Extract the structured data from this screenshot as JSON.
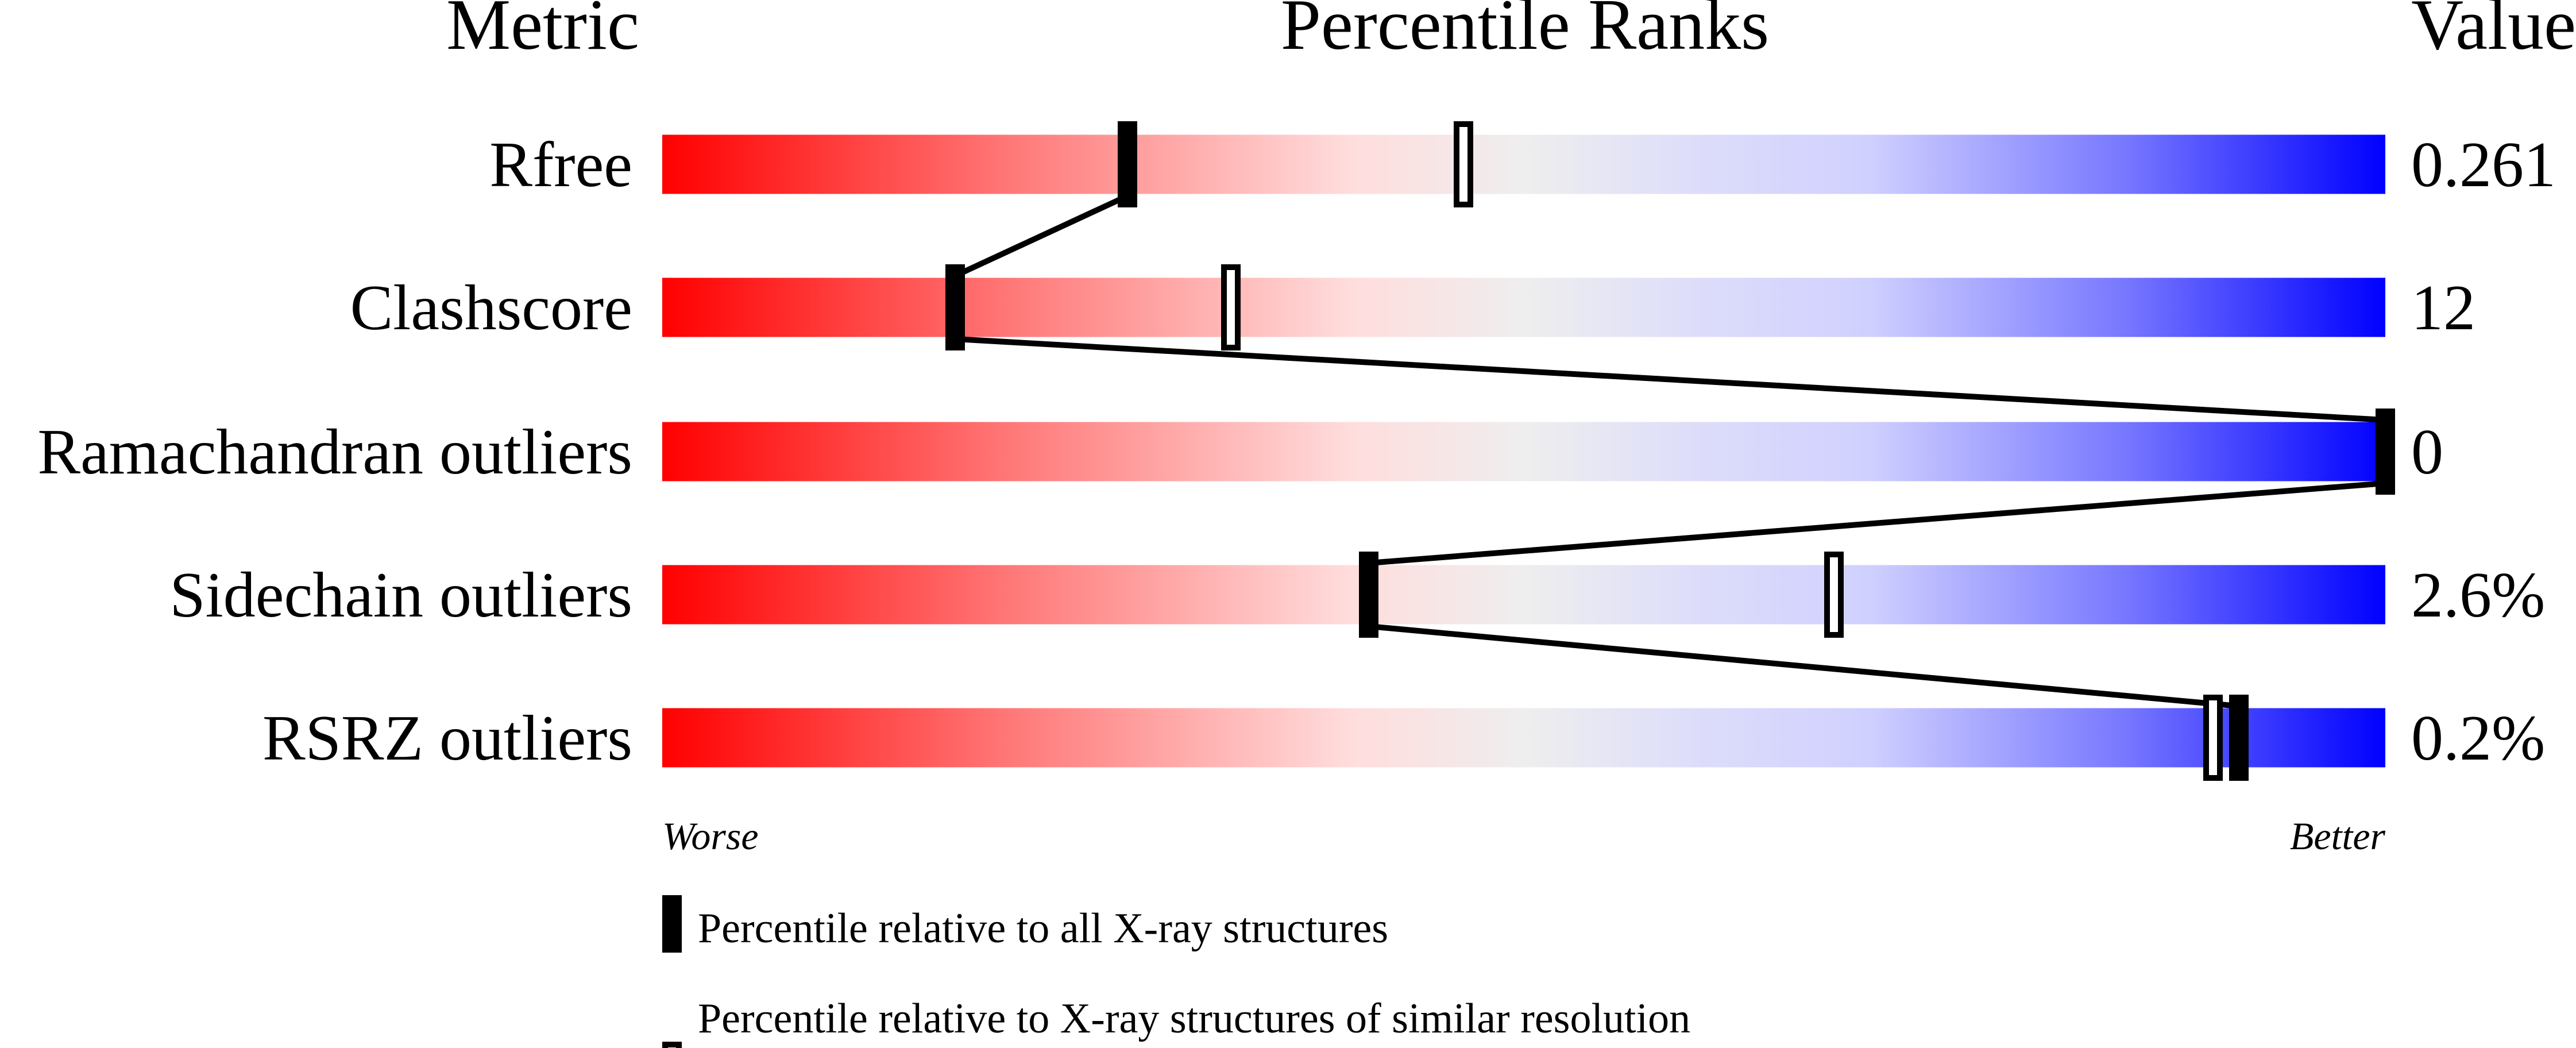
{
  "chart_data": {
    "type": "percentile-ranks",
    "headers": {
      "metric": "Metric",
      "ranks": "Percentile Ranks",
      "value": "Value"
    },
    "xlim": [
      0,
      100
    ],
    "axis_labels": {
      "worse": "Worse",
      "better": "Better"
    },
    "gradient_colors": [
      "#ff0000",
      "#ff7777",
      "#ffdddd",
      "#eeeeee",
      "#ddddfa",
      "#d0d0ff",
      "#7777ff",
      "#0000ff"
    ],
    "rows": [
      {
        "metric": "Rfree",
        "value": "0.261",
        "percentile_all": 27,
        "percentile_similar": 46.5
      },
      {
        "metric": "Clashscore",
        "value": "12",
        "percentile_all": 17,
        "percentile_similar": 33
      },
      {
        "metric": "Ramachandran outliers",
        "value": "0",
        "percentile_all": 100,
        "percentile_similar": null
      },
      {
        "metric": "Sidechain outliers",
        "value": "2.6%",
        "percentile_all": 41,
        "percentile_similar": 68
      },
      {
        "metric": "RSRZ outliers",
        "value": "0.2%",
        "percentile_all": 91.5,
        "percentile_similar": 90
      }
    ],
    "legend": [
      {
        "marker": "filled",
        "label": "Percentile relative to all X-ray structures"
      },
      {
        "marker": "open",
        "label": "Percentile relative to X-ray structures of similar resolution"
      }
    ]
  }
}
